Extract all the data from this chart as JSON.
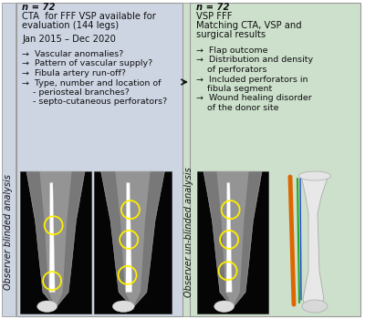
{
  "left_box_bg": "#cdd5e3",
  "right_box_bg": "#cce0cc",
  "outer_bg": "#ffffff",
  "box_border_color": "#999999",
  "text_color": "#111111",
  "arrow_color": "#111111",
  "circle_color": "#ffee00",
  "left_title_line1": "n = 72",
  "left_title_line2": "CTA  for FFF VSP available for",
  "left_title_line3": "evaluation (144 legs)",
  "left_date": "Jan 2015 – Dec 2020",
  "left_bullets": [
    "→  Vascular anomalies?",
    "→  Pattern of vascular supply?",
    "→  Fibula artery run-off?",
    "→  Type, number and location of",
    "    - periosteal branches?",
    "    - septo-cutaneous perforators?"
  ],
  "right_title_line1": "n = 72",
  "right_title_line2": "VSP FFF",
  "right_title_line3": "Matching CTA, VSP and",
  "right_title_line4": "surgical results",
  "right_bullets": [
    "→  Flap outcome",
    "→  Distribution and density",
    "    of perforators",
    "→  Included perforators in",
    "    fibula segment",
    "→  Wound healing disorder",
    "    of the donor site"
  ],
  "left_side_label": "Observer blinded analysis",
  "right_side_label": "Observer un-blinded analysis",
  "title_fontsize": 7.2,
  "bullet_fontsize": 6.8,
  "side_label_fontsize": 7.0
}
